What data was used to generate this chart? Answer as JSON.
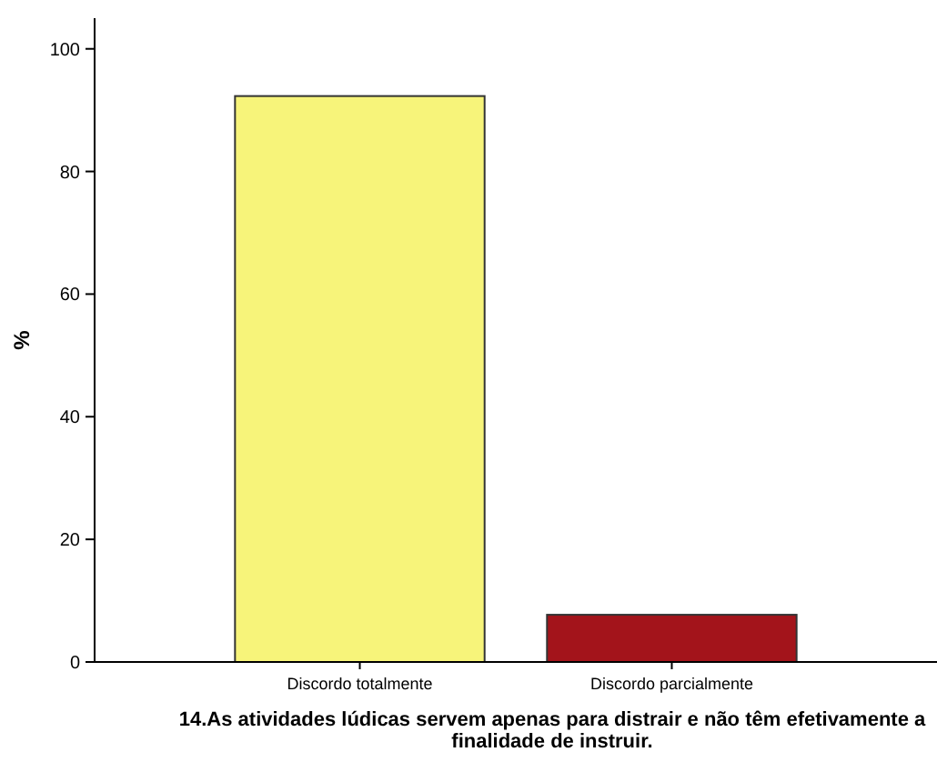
{
  "chart_data": {
    "type": "bar",
    "categories": [
      "Discordo totalmente",
      "Discordo parcialmente"
    ],
    "values": [
      92.3,
      7.7
    ],
    "colors": [
      "#f7f47a",
      "#a3141b"
    ],
    "ylabel": "%",
    "xlabel": "14.As atividades lúdicas servem apenas para distrair e não têm efetivamente a finalidade de instruir.",
    "ylim": [
      0,
      105
    ],
    "yticks": [
      0,
      20,
      40,
      60,
      80,
      100
    ],
    "grid": false
  }
}
